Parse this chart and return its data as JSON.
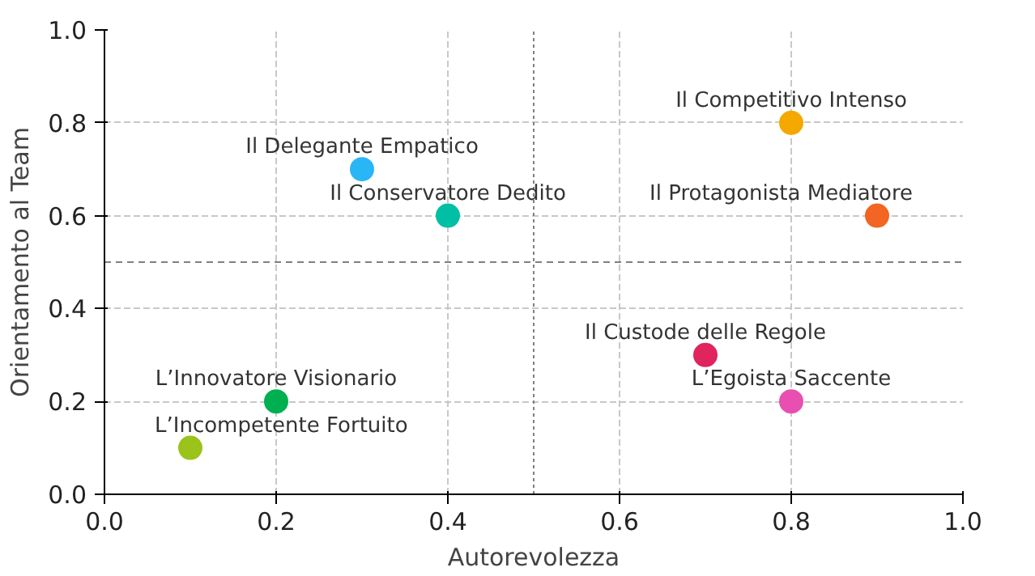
{
  "chart_data": {
    "type": "scatter",
    "xlabel": "Autorevolezza",
    "ylabel": "Orientamento al Team",
    "xlim": [
      0,
      1
    ],
    "ylim": [
      0,
      1
    ],
    "xticks": [
      {
        "value": 0,
        "label": "0.0"
      },
      0.2,
      0.4,
      0.6,
      0.8,
      {
        "value": 1,
        "label": "1.0"
      }
    ],
    "yticks": [
      {
        "value": 0,
        "label": "0.0"
      },
      0.2,
      0.4,
      0.6,
      0.8,
      {
        "value": 1,
        "label": "1.0"
      }
    ],
    "grid": true,
    "marker": "circle",
    "ref_lines": [
      {
        "axis": "x",
        "value": 0.5,
        "color": "#808080",
        "line_style": "dotted"
      },
      {
        "axis": "y",
        "value": 0.5,
        "color": "#808080",
        "line_style": "dashed"
      }
    ],
    "series": [
      {
        "name": "Il Competitivo Intenso",
        "color": "#f5a800",
        "x": [
          0.8
        ],
        "values": [
          0.8
        ]
      },
      {
        "name": "Il Delegante Empatico",
        "color": "#29b6f6",
        "x": [
          0.3
        ],
        "values": [
          0.7
        ]
      },
      {
        "name": "Il Conservatore Dedito",
        "color": "#00bfa5",
        "x": [
          0.4
        ],
        "values": [
          0.6
        ]
      },
      {
        "name": "Il Protagonista Mediatore",
        "color": "#f26522",
        "x": [
          0.9
        ],
        "values": [
          0.6
        ]
      },
      {
        "name": "Il Custode delle Regole",
        "color": "#e0245e",
        "x": [
          0.7
        ],
        "values": [
          0.3
        ]
      },
      {
        "name": "L’Egoista Saccente",
        "color": "#e84fb0",
        "x": [
          0.8
        ],
        "values": [
          0.2
        ]
      },
      {
        "name": "L’Innovatore Visionario",
        "color": "#00b050",
        "x": [
          0.2
        ],
        "values": [
          0.2
        ]
      },
      {
        "name": "L’Incompetente Fortuito",
        "color": "#9bc31c",
        "x": [
          0.1
        ],
        "values": [
          0.1
        ]
      }
    ]
  }
}
